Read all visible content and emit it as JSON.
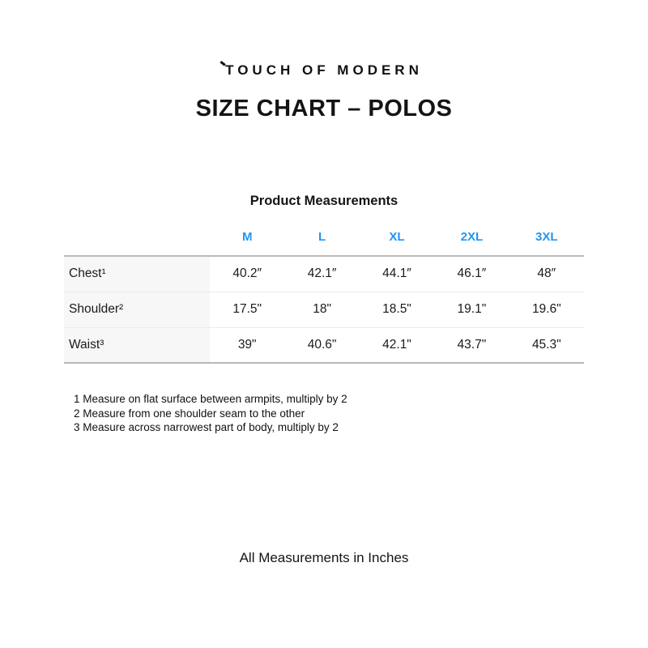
{
  "brand": {
    "logo_text": "TOUCH OF MODERN"
  },
  "title": "SIZE CHART – POLOS",
  "table": {
    "caption": "Product Measurements",
    "size_headers": [
      "M",
      "L",
      "XL",
      "2XL",
      "3XL"
    ],
    "rows": [
      {
        "label": "Chest¹",
        "values": [
          "40.2″",
          "42.1″",
          "44.1″",
          "46.1″",
          "48″"
        ]
      },
      {
        "label": "Shoulder²",
        "values": [
          "17.5\"",
          "18\"",
          "18.5\"",
          "19.1\"",
          "19.6\""
        ]
      },
      {
        "label": "Waist³",
        "values": [
          "39\"",
          "40.6\"",
          "42.1\"",
          "43.7\"",
          "45.3\""
        ]
      }
    ]
  },
  "footnotes": [
    "1 Measure on flat surface between armpits, multiply by 2",
    "2 Measure from one shoulder seam to the other",
    "3 Measure across narrowest part of body, multiply by 2"
  ],
  "footer": "All Measurements in Inches",
  "colors": {
    "accent_blue": "#2196F3",
    "table_border": "#b9b9b9",
    "row_separator": "#ebebeb",
    "label_column_bg": "#f7f7f7",
    "text": "#1a1a1a"
  }
}
